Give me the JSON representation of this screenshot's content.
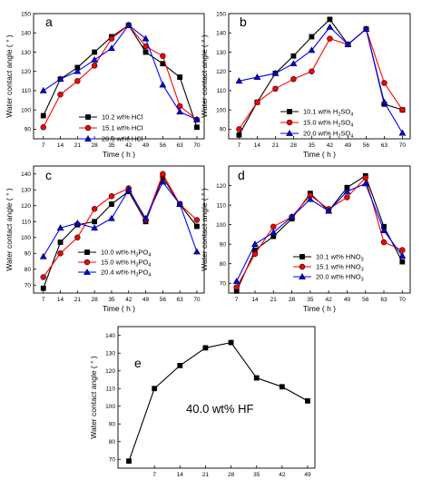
{
  "chart_data": [
    {
      "type": "line",
      "panel_label": "a",
      "x": [
        7,
        14,
        21,
        28,
        35,
        42,
        49,
        56,
        63,
        70
      ],
      "xlabel": "Time ( h )",
      "ylabel": "Water contact angle  ( ° )",
      "xlim": [
        3,
        73
      ],
      "ylim": [
        85,
        150
      ],
      "xticks": [
        7,
        14,
        21,
        28,
        35,
        42,
        49,
        56,
        63,
        70
      ],
      "yticks": [
        90,
        100,
        110,
        120,
        130,
        140,
        150
      ],
      "legend_position": "bottom-center",
      "series": [
        {
          "name_parts": [
            "10.2  wt% HCl"
          ],
          "marker": "square",
          "color": "#000000",
          "values": [
            97,
            116,
            122,
            130,
            138,
            144,
            130,
            124,
            117,
            91
          ]
        },
        {
          "name_parts": [
            "15.1  wt% HCl"
          ],
          "marker": "circle",
          "color": "#ff0000",
          "values": [
            91,
            108,
            115,
            123,
            137,
            144,
            133,
            128,
            102,
            95
          ]
        },
        {
          "name_parts": [
            "20.0  wt% HCl"
          ],
          "marker": "triangle",
          "color": "#0000ff",
          "values": [
            110,
            116,
            120,
            126,
            132,
            144,
            137,
            113,
            99,
            95
          ]
        }
      ]
    },
    {
      "type": "line",
      "panel_label": "b",
      "x": [
        7,
        14,
        21,
        28,
        35,
        42,
        49,
        56,
        63,
        70
      ],
      "xlabel": "Time ( h )",
      "ylabel": "Water contact angle  ( ° )",
      "xlim": [
        3,
        73
      ],
      "ylim": [
        85,
        150
      ],
      "xticks": [
        7,
        14,
        21,
        28,
        35,
        42,
        49,
        56,
        63,
        70
      ],
      "yticks": [
        90,
        100,
        110,
        120,
        130,
        140,
        150
      ],
      "legend_position": "bottom-center",
      "series": [
        {
          "name_parts": [
            "10.1  wt% H",
            "2",
            "SO",
            "4"
          ],
          "marker": "square",
          "color": "#000000",
          "values": [
            87,
            104,
            119,
            128,
            138,
            147,
            134,
            142,
            103,
            100
          ]
        },
        {
          "name_parts": [
            "15.0  wt% H",
            "2",
            "SO",
            "4"
          ],
          "marker": "circle",
          "color": "#ff0000",
          "values": [
            90,
            104,
            111,
            116,
            120,
            137,
            134,
            142,
            114,
            100
          ]
        },
        {
          "name_parts": [
            "20.0  wt% H",
            "2",
            "SO",
            "4"
          ],
          "marker": "triangle",
          "color": "#0000ff",
          "values": [
            115,
            117,
            119,
            124,
            131,
            143,
            134,
            142,
            104,
            88
          ]
        }
      ]
    },
    {
      "type": "line",
      "panel_label": "c",
      "x": [
        7,
        14,
        21,
        28,
        35,
        42,
        49,
        56,
        63,
        70
      ],
      "xlabel": "Time ( h )",
      "ylabel": "Water contact angle  ( ° )",
      "xlim": [
        3,
        73
      ],
      "ylim": [
        65,
        145
      ],
      "xticks": [
        7,
        14,
        21,
        28,
        35,
        42,
        49,
        56,
        63,
        70
      ],
      "yticks": [
        70,
        80,
        90,
        100,
        110,
        120,
        130,
        140
      ],
      "legend_position": "bottom-right",
      "series": [
        {
          "name_parts": [
            "10.0  wt% H",
            "3",
            "PO",
            "4"
          ],
          "marker": "square",
          "color": "#000000",
          "values": [
            68,
            97,
            108,
            110,
            121,
            129,
            110,
            138,
            121,
            107
          ]
        },
        {
          "name_parts": [
            "15.0  wt% H",
            "3",
            "PO",
            "4"
          ],
          "marker": "circle",
          "color": "#ff0000",
          "values": [
            75,
            90,
            100,
            118,
            126,
            131,
            111,
            140,
            121,
            111
          ]
        },
        {
          "name_parts": [
            "20.4  wt% H",
            "3",
            "PO",
            "4"
          ],
          "marker": "triangle",
          "color": "#0000ff",
          "values": [
            88,
            106,
            109,
            106,
            112,
            130,
            112,
            135,
            121,
            91
          ]
        }
      ]
    },
    {
      "type": "line",
      "panel_label": "d",
      "x": [
        7,
        14,
        21,
        28,
        35,
        42,
        49,
        56,
        63,
        70
      ],
      "xlabel": "Time ( h )",
      "ylabel": "Water contact angle  ( ° )",
      "xlim": [
        4,
        73
      ],
      "ylim": [
        65,
        130
      ],
      "xticks": [
        7,
        14,
        21,
        28,
        35,
        42,
        49,
        56,
        63,
        70
      ],
      "yticks": [
        70,
        80,
        90,
        100,
        110,
        120
      ],
      "legend_position": "bottom-right",
      "series": [
        {
          "name_parts": [
            "10.1  wt% HNO",
            "3"
          ],
          "marker": "square",
          "color": "#000000",
          "values": [
            66,
            87,
            94,
            103,
            116,
            107,
            119,
            125,
            99,
            81
          ]
        },
        {
          "name_parts": [
            "15.1  wt% HNO",
            "3"
          ],
          "marker": "circle",
          "color": "#ff0000",
          "values": [
            68,
            85,
            99,
            104,
            115,
            108,
            114,
            124,
            91,
            87
          ]
        },
        {
          "name_parts": [
            "20.0  wt% HNO",
            "3"
          ],
          "marker": "triangle",
          "color": "#0000ff",
          "values": [
            71,
            90,
            96,
            104,
            113,
            107,
            117,
            121,
            97,
            84
          ]
        }
      ]
    },
    {
      "type": "line",
      "panel_label": "e",
      "x": [
        0,
        7,
        14,
        21,
        28,
        35,
        42,
        49
      ],
      "xticks": [
        7,
        14,
        21,
        28,
        35,
        42,
        49
      ],
      "xlabel": "",
      "ylabel": "Water contact angle  ( ° )",
      "xlim": [
        -3,
        51
      ],
      "ylim": [
        65,
        145
      ],
      "yticks": [
        70,
        80,
        90,
        100,
        110,
        120,
        130,
        140
      ],
      "annotation": "40.0 wt% HF",
      "series": [
        {
          "marker": "square",
          "color": "#000000",
          "values": [
            69,
            110,
            123,
            133,
            136,
            116,
            111,
            103
          ]
        }
      ]
    }
  ]
}
